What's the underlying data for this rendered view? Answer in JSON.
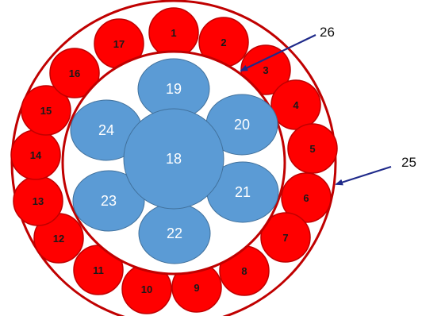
{
  "colors": {
    "outer_strand": "#ff0000",
    "outer_strand_stroke": "#c00000",
    "ring": "#c00000",
    "inner_strand": "#5b9bd5",
    "inner_strand_stroke": "#41719c",
    "arrow": "#1f2a8a"
  },
  "outer_strands": [
    {
      "label": "1"
    },
    {
      "label": "2"
    },
    {
      "label": "3"
    },
    {
      "label": "4"
    },
    {
      "label": "5"
    },
    {
      "label": "6"
    },
    {
      "label": "7"
    },
    {
      "label": "8"
    },
    {
      "label": "9"
    },
    {
      "label": "10"
    },
    {
      "label": "11"
    },
    {
      "label": "12"
    },
    {
      "label": "13"
    },
    {
      "label": "14"
    },
    {
      "label": "15"
    },
    {
      "label": "16"
    },
    {
      "label": "17"
    }
  ],
  "inner_strands": {
    "center": {
      "label": "18"
    },
    "petals": [
      {
        "label": "19"
      },
      {
        "label": "20"
      },
      {
        "label": "21"
      },
      {
        "label": "22"
      },
      {
        "label": "23"
      },
      {
        "label": "24"
      }
    ]
  },
  "callouts": [
    {
      "label": "26"
    },
    {
      "label": "25"
    }
  ]
}
